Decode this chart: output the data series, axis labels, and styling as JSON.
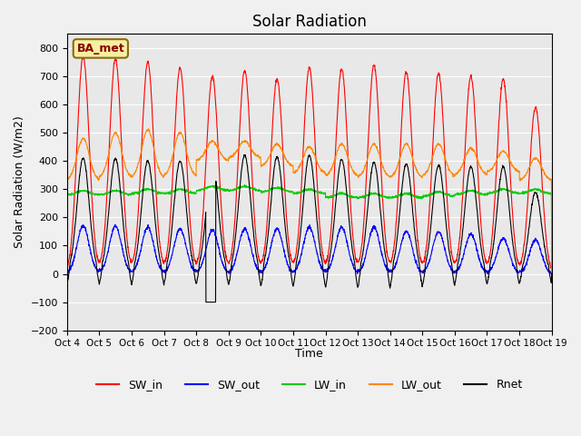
{
  "title": "Solar Radiation",
  "ylabel": "Solar Radiation (W/m2)",
  "xlabel": "Time",
  "ylim": [
    -200,
    850
  ],
  "yticks": [
    -200,
    -100,
    0,
    100,
    200,
    300,
    400,
    500,
    600,
    700,
    800
  ],
  "xlim_days": [
    0,
    15
  ],
  "n_days": 15,
  "annotation_text": "BA_met",
  "background_color": "#e8e8e8",
  "series_colors": {
    "SW_in": "#ff0000",
    "SW_out": "#0000ff",
    "LW_in": "#00cc00",
    "LW_out": "#ff8800",
    "Rnet": "#000000"
  },
  "x_tick_labels": [
    "Oct 4",
    "Oct 5",
    "Oct 6",
    "Oct 7",
    "Oct 8",
    "Oct 9",
    "Oct 10",
    "Oct 11",
    "Oct 12",
    "Oct 13",
    "Oct 14",
    "Oct 15",
    "Oct 16",
    "Oct 17",
    "Oct 18",
    "Oct 19"
  ],
  "SW_in_peaks": [
    770,
    760,
    750,
    730,
    700,
    720,
    690,
    730,
    725,
    740,
    715,
    710,
    700,
    690,
    590
  ],
  "SW_out_peaks": [
    170,
    170,
    165,
    160,
    155,
    160,
    160,
    165,
    165,
    165,
    150,
    150,
    140,
    125,
    120
  ],
  "LW_in_base": [
    280,
    280,
    285,
    285,
    295,
    295,
    290,
    285,
    270,
    270,
    270,
    275,
    280,
    285,
    285
  ],
  "LW_out_base": [
    330,
    340,
    340,
    345,
    400,
    410,
    380,
    355,
    345,
    340,
    340,
    345,
    350,
    360,
    330
  ],
  "LW_out_day_peaks": [
    480,
    500,
    510,
    500,
    470,
    470,
    460,
    450,
    460,
    460,
    460,
    460,
    445,
    435,
    410
  ],
  "Rnet_peaks": [
    410,
    410,
    400,
    400,
    390,
    420,
    415,
    420,
    405,
    395,
    390,
    385,
    380,
    380,
    290
  ],
  "Rnet_night": [
    -65,
    -65,
    -68,
    -68,
    -68,
    -75,
    -80,
    -80,
    -85,
    -85,
    -80,
    -75,
    -65,
    -65,
    -60
  ],
  "Rnet_deep_dip": [
    null,
    null,
    null,
    null,
    -105,
    null,
    -80,
    null,
    null,
    null,
    null,
    null,
    null,
    null,
    null
  ]
}
